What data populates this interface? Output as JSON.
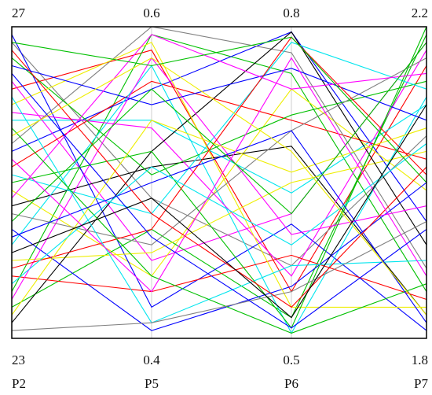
{
  "chart_data": {
    "type": "parallel-coordinates",
    "axes": [
      {
        "name": "P2",
        "min": 23,
        "max": 27,
        "min_label": "23",
        "max_label": "27"
      },
      {
        "name": "P5",
        "min": 0.4,
        "max": 0.6,
        "min_label": "0.4",
        "max_label": "0.6"
      },
      {
        "name": "P6",
        "min": 0.5,
        "max": 0.8,
        "min_label": "0.5",
        "max_label": "0.8"
      },
      {
        "name": "P7",
        "min": 1.8,
        "max": 2.2,
        "min_label": "1.8",
        "max_label": "2.2"
      }
    ],
    "grid": false,
    "legend": "none",
    "palette": [
      "#ff0000",
      "#00c000",
      "#0000ff",
      "#00e5ee",
      "#ff00ff",
      "#eeee00",
      "#808080",
      "#000000"
    ],
    "series": [
      {
        "color": "#ff0000",
        "values": [
          26.2,
          0.585,
          0.545,
          2.15
        ]
      },
      {
        "color": "#00c000",
        "values": [
          23.6,
          0.595,
          0.755,
          1.86
        ]
      },
      {
        "color": "#0000ff",
        "values": [
          25.4,
          0.56,
          0.795,
          1.95
        ]
      },
      {
        "color": "#00e5ee",
        "values": [
          25.8,
          0.54,
          0.64,
          2.1
        ]
      },
      {
        "color": "#ff00ff",
        "values": [
          26.3,
          0.45,
          0.62,
          2.18
        ]
      },
      {
        "color": "#eeee00",
        "values": [
          24.9,
          0.44,
          0.74,
          1.99
        ]
      },
      {
        "color": "#808080",
        "values": [
          26.8,
          0.49,
          0.57,
          2.06
        ]
      },
      {
        "color": "#000000",
        "values": [
          24.7,
          0.51,
          0.685,
          1.83
        ]
      },
      {
        "color": "#ff0000",
        "values": [
          25.2,
          0.565,
          0.71,
          2.03
        ]
      },
      {
        "color": "#00c000",
        "values": [
          23.4,
          0.47,
          0.52,
          2.19
        ]
      },
      {
        "color": "#0000ff",
        "values": [
          26.9,
          0.42,
          0.61,
          1.81
        ]
      },
      {
        "color": "#00e5ee",
        "values": [
          24.2,
          0.575,
          0.505,
          2.11
        ]
      },
      {
        "color": "#ff00ff",
        "values": [
          25.9,
          0.535,
          0.56,
          2.17
        ]
      },
      {
        "color": "#eeee00",
        "values": [
          24.0,
          0.455,
          0.65,
          2.04
        ]
      },
      {
        "color": "#808080",
        "values": [
          25.5,
          0.6,
          0.775,
          1.89
        ]
      },
      {
        "color": "#000000",
        "values": [
          23.2,
          0.52,
          0.795,
          1.92
        ]
      },
      {
        "color": "#ff0000",
        "values": [
          23.8,
          0.43,
          0.58,
          1.85
        ]
      },
      {
        "color": "#00c000",
        "values": [
          26.6,
          0.505,
          0.715,
          2.13
        ]
      },
      {
        "color": "#0000ff",
        "values": [
          24.4,
          0.405,
          0.55,
          2.0
        ]
      },
      {
        "color": "#00e5ee",
        "values": [
          25.1,
          0.48,
          0.785,
          2.12
        ]
      },
      {
        "color": "#ff00ff",
        "values": [
          23.5,
          0.58,
          0.6,
          1.97
        ]
      },
      {
        "color": "#eeee00",
        "values": [
          26.0,
          0.59,
          0.53,
          1.84
        ]
      },
      {
        "color": "#808080",
        "values": [
          24.6,
          0.46,
          0.7,
          2.16
        ]
      },
      {
        "color": "#0000ff",
        "values": [
          26.5,
          0.55,
          0.76,
          2.08
        ]
      },
      {
        "color": "#00c000",
        "values": [
          25.0,
          0.52,
          0.51,
          2.2
        ]
      },
      {
        "color": "#ff0000",
        "values": [
          23.9,
          0.47,
          0.79,
          2.01
        ]
      },
      {
        "color": "#00e5ee",
        "values": [
          26.1,
          0.41,
          0.57,
          1.9
        ]
      },
      {
        "color": "#ff00ff",
        "values": [
          24.8,
          0.595,
          0.74,
          2.14
        ]
      },
      {
        "color": "#00c000",
        "values": [
          25.7,
          0.44,
          0.505,
          1.87
        ]
      },
      {
        "color": "#eeee00",
        "values": [
          23.3,
          0.54,
          0.66,
          2.07
        ]
      },
      {
        "color": "#808080",
        "values": [
          23.1,
          0.41,
          0.545,
          1.95
        ]
      },
      {
        "color": "#0000ff",
        "values": [
          24.3,
          0.5,
          0.7,
          1.82
        ]
      },
      {
        "color": "#ff0000",
        "values": [
          26.7,
          0.48,
          0.53,
          2.02
        ]
      },
      {
        "color": "#00c000",
        "values": [
          24.5,
          0.56,
          0.62,
          2.18
        ]
      },
      {
        "color": "#ff00ff",
        "values": [
          25.3,
          0.43,
          0.77,
          1.88
        ]
      },
      {
        "color": "#00e5ee",
        "values": [
          23.7,
          0.51,
          0.59,
          2.05
        ]
      },
      {
        "color": "#0000ff",
        "values": [
          26.4,
          0.465,
          0.51,
          1.94
        ]
      },
      {
        "color": "#eeee00",
        "values": [
          25.6,
          0.58,
          0.68,
          1.83
        ]
      },
      {
        "color": "#000000",
        "values": [
          24.1,
          0.49,
          0.52,
          2.1
        ]
      },
      {
        "color": "#00c000",
        "values": [
          26.8,
          0.575,
          0.79,
          2.0
        ]
      }
    ]
  }
}
